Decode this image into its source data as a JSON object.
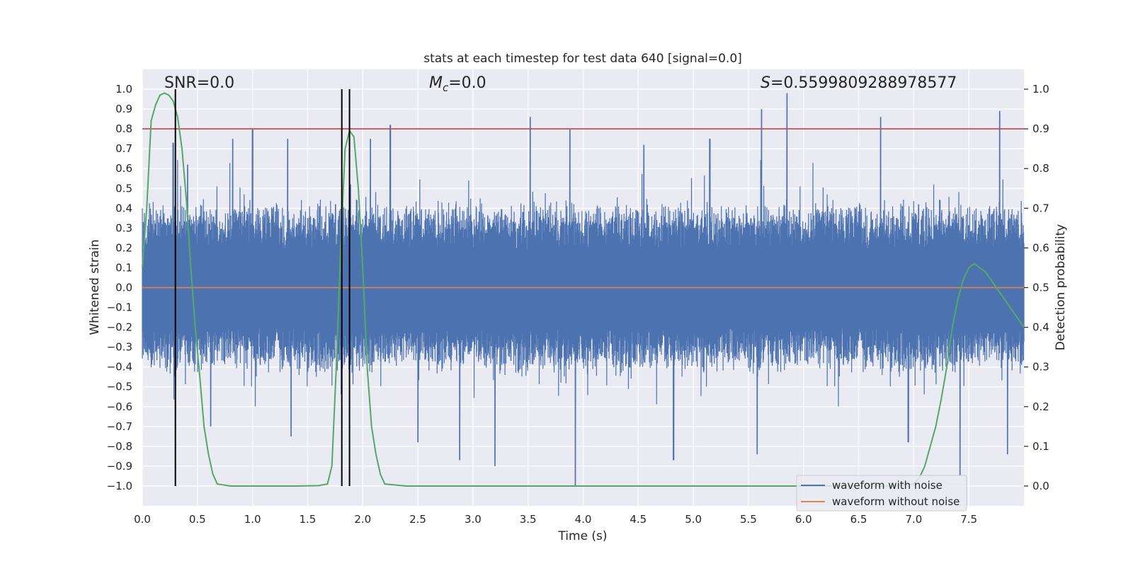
{
  "chart_data": {
    "type": "line",
    "title": "stats at each timestep for test data 640 [signal=0.0]",
    "xlabel": "Time (s)",
    "ylabel_left": "Whitened strain",
    "ylabel_right": "Detection probability",
    "xlim": [
      0.0,
      8.0
    ],
    "ylim_left": [
      -1.1,
      1.1
    ],
    "ylim_right": [
      -0.05,
      1.05
    ],
    "x_ticks": [
      0.0,
      0.5,
      1.0,
      1.5,
      2.0,
      2.5,
      3.0,
      3.5,
      4.0,
      4.5,
      5.0,
      5.5,
      6.0,
      6.5,
      7.0,
      7.5
    ],
    "x_tick_labels": [
      "0.0",
      "0.5",
      "1.0",
      "1.5",
      "2.0",
      "2.5",
      "3.0",
      "3.5",
      "4.0",
      "4.5",
      "5.0",
      "5.5",
      "6.0",
      "6.5",
      "7.0",
      "7.5"
    ],
    "y_left_ticks": [
      -1.0,
      -0.9,
      -0.8,
      -0.7,
      -0.6,
      -0.5,
      -0.4,
      -0.3,
      -0.2,
      -0.1,
      0.0,
      0.1,
      0.2,
      0.3,
      0.4,
      0.5,
      0.6,
      0.7,
      0.8,
      0.9,
      1.0
    ],
    "y_left_tick_labels": [
      "−1.0",
      "−0.9",
      "−0.8",
      "−0.7",
      "−0.6",
      "−0.5",
      "−0.4",
      "−0.3",
      "−0.2",
      "−0.1",
      "0.0",
      "0.1",
      "0.2",
      "0.3",
      "0.4",
      "0.5",
      "0.6",
      "0.7",
      "0.8",
      "0.9",
      "1.0"
    ],
    "y_right_ticks": [
      0.0,
      0.1,
      0.2,
      0.3,
      0.4,
      0.5,
      0.6,
      0.7,
      0.8,
      0.9,
      1.0
    ],
    "y_right_tick_labels": [
      "0.0",
      "0.1",
      "0.2",
      "0.3",
      "0.4",
      "0.5",
      "0.6",
      "0.7",
      "0.8",
      "0.9",
      "1.0"
    ],
    "annotations": {
      "snr": "SNR=0.0",
      "mc_symbol": "M",
      "mc_subscript": "c",
      "mc_value": "=0.0",
      "s_symbol": "S",
      "s_value": "=0.5599809288978577"
    },
    "threshold_line": {
      "axis": "right",
      "y": 0.9,
      "color": "#c44e52"
    },
    "vertical_markers_x": [
      0.3,
      1.81,
      1.88
    ],
    "noise_series": {
      "name": "waveform with noise",
      "color": "#4c72b0",
      "axis": "left",
      "core_band": [
        -0.2,
        0.19
      ],
      "typical_envelope": [
        -0.45,
        0.45
      ],
      "peaks": [
        {
          "x": 0.28,
          "y": 0.73
        },
        {
          "x": 0.41,
          "y": 0.62
        },
        {
          "x": 0.82,
          "y": 0.75
        },
        {
          "x": 1.0,
          "y": 0.8
        },
        {
          "x": 1.32,
          "y": 0.75
        },
        {
          "x": 2.07,
          "y": 0.75
        },
        {
          "x": 2.25,
          "y": 0.82
        },
        {
          "x": 3.52,
          "y": 0.86
        },
        {
          "x": 3.88,
          "y": 0.8
        },
        {
          "x": 5.62,
          "y": 0.9
        },
        {
          "x": 5.85,
          "y": 0.98
        },
        {
          "x": 6.7,
          "y": 0.86
        },
        {
          "x": 7.78,
          "y": 0.89
        },
        {
          "x": 5.15,
          "y": 0.75
        },
        {
          "x": 4.55,
          "y": 0.72
        }
      ],
      "troughs": [
        {
          "x": 0.3,
          "y": -0.65
        },
        {
          "x": 0.62,
          "y": -0.7
        },
        {
          "x": 1.35,
          "y": -0.75
        },
        {
          "x": 2.5,
          "y": -0.78
        },
        {
          "x": 2.88,
          "y": -0.87
        },
        {
          "x": 3.2,
          "y": -0.9
        },
        {
          "x": 3.93,
          "y": -1.0
        },
        {
          "x": 4.82,
          "y": -0.87
        },
        {
          "x": 5.58,
          "y": -0.84
        },
        {
          "x": 6.95,
          "y": -0.78
        },
        {
          "x": 7.42,
          "y": -0.95
        },
        {
          "x": 7.85,
          "y": -0.84
        }
      ]
    },
    "clean_series": {
      "name": "waveform without noise",
      "color": "#dd8452",
      "axis": "left",
      "x": [
        0.0,
        8.0
      ],
      "y": [
        0.0,
        0.0
      ]
    },
    "probability_series": {
      "name": "detection probability",
      "color": "#55a868",
      "axis": "right",
      "x": [
        0.0,
        0.04,
        0.08,
        0.12,
        0.16,
        0.2,
        0.24,
        0.28,
        0.32,
        0.36,
        0.4,
        0.44,
        0.48,
        0.52,
        0.56,
        0.6,
        0.64,
        0.68,
        0.8,
        1.0,
        1.2,
        1.4,
        1.6,
        1.68,
        1.72,
        1.76,
        1.8,
        1.84,
        1.88,
        1.92,
        1.96,
        2.0,
        2.04,
        2.08,
        2.12,
        2.16,
        2.2,
        2.4,
        3.0,
        4.0,
        5.0,
        6.0,
        6.8,
        7.0,
        7.05,
        7.1,
        7.15,
        7.2,
        7.25,
        7.3,
        7.35,
        7.4,
        7.45,
        7.5,
        7.55,
        7.6,
        7.65,
        7.7,
        7.75,
        7.8,
        7.85,
        7.9,
        7.95,
        8.0
      ],
      "y": [
        0.55,
        0.7,
        0.92,
        0.96,
        0.985,
        0.99,
        0.985,
        0.97,
        0.93,
        0.85,
        0.72,
        0.55,
        0.4,
        0.28,
        0.15,
        0.08,
        0.03,
        0.005,
        0.0,
        0.0,
        0.0,
        0.0,
        0.001,
        0.005,
        0.05,
        0.3,
        0.6,
        0.85,
        0.895,
        0.88,
        0.75,
        0.55,
        0.3,
        0.15,
        0.08,
        0.03,
        0.005,
        0.0,
        0.0,
        0.0,
        0.0,
        0.0,
        0.0,
        0.005,
        0.02,
        0.05,
        0.1,
        0.15,
        0.22,
        0.3,
        0.4,
        0.47,
        0.52,
        0.55,
        0.56,
        0.55,
        0.54,
        0.52,
        0.5,
        0.48,
        0.46,
        0.44,
        0.42,
        0.4
      ]
    },
    "legend": {
      "placement": "lower-right",
      "entries": [
        {
          "label": "waveform with noise",
          "color": "#4c72b0"
        },
        {
          "label": "waveform without noise",
          "color": "#dd8452"
        }
      ]
    },
    "grid": true
  }
}
